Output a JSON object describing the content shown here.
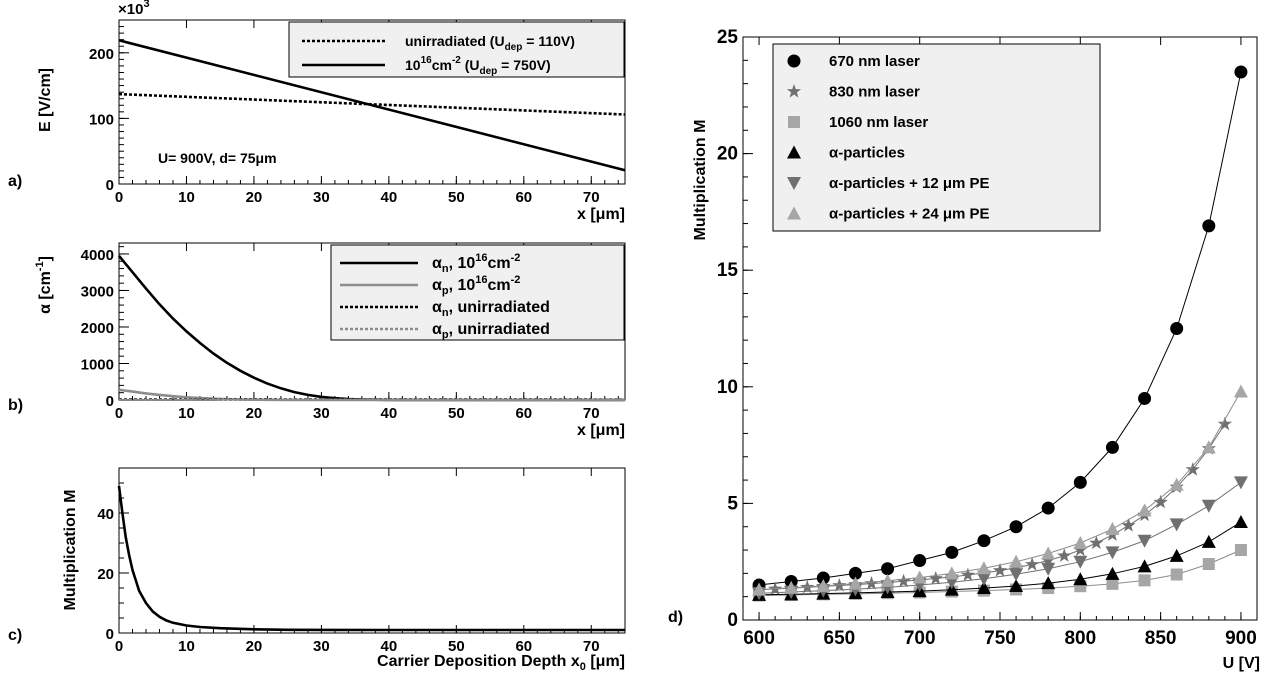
{
  "panels": {
    "a": {
      "tag": "a)",
      "chart_data": {
        "type": "line",
        "exponent_label": "×10",
        "exponent_sup": "3",
        "xlabel": "x [μm]",
        "ylabel": "E [V/cm]",
        "annotation": "U= 900V, d= 75μm",
        "xlim": [
          0,
          75
        ],
        "ylim": [
          0,
          250
        ],
        "xticks": [
          "0",
          "10",
          "20",
          "30",
          "40",
          "50",
          "60",
          "70"
        ],
        "yticks": [
          "0",
          "100",
          "200"
        ],
        "series": [
          {
            "name_main": "unirradiated (U",
            "name_sub": "dep",
            "name_tail": " = 110V)",
            "style": "dotted",
            "color": "#000000",
            "x": [
              0,
              75
            ],
            "y": [
              137,
              106
            ]
          },
          {
            "name_main": "10",
            "name_sup": "16",
            "name_mid": "cm",
            "name_sup2": "-2",
            "name_mid2": " (U",
            "name_sub": "dep",
            "name_tail": " = 750V)",
            "style": "solid",
            "color": "#000000",
            "x": [
              0,
              75
            ],
            "y": [
              219,
              21
            ]
          }
        ]
      }
    },
    "b": {
      "tag": "b)",
      "chart_data": {
        "type": "line",
        "xlabel": "x [μm]",
        "ylabel_main": "α [cm",
        "ylabel_sup": "-1",
        "ylabel_tail": "]",
        "xlim": [
          0,
          75
        ],
        "ylim": [
          0,
          4300
        ],
        "xticks": [
          "0",
          "10",
          "20",
          "30",
          "40",
          "50",
          "60",
          "70"
        ],
        "yticks": [
          "0",
          "1000",
          "2000",
          "3000",
          "4000"
        ],
        "series": [
          {
            "name_main": "α",
            "name_sub": "n",
            "name_mid": ", 10",
            "name_sup": "16",
            "name_tail": "cm",
            "name_sup2": "-2",
            "style": "solid",
            "color": "#000000",
            "x": [
              0,
              2,
              4,
              6,
              8,
              10,
              12,
              14,
              16,
              18,
              20,
              22,
              24,
              26,
              28,
              30,
              32,
              34,
              36,
              38,
              40,
              45,
              50,
              55,
              60,
              65,
              70,
              75
            ],
            "y": [
              3950,
              3500,
              3050,
              2620,
              2230,
              1880,
              1560,
              1270,
              1020,
              800,
              610,
              450,
              320,
              215,
              140,
              85,
              50,
              28,
              15,
              8,
              4,
              1,
              0,
              0,
              0,
              0,
              0,
              0
            ]
          },
          {
            "name_main": "α",
            "name_sub": "p",
            "name_mid": ", 10",
            "name_sup": "16",
            "name_tail": "cm",
            "name_sup2": "-2",
            "style": "solid",
            "color": "#8c8c8c",
            "x": [
              0,
              2,
              4,
              6,
              8,
              10,
              12,
              14,
              16,
              18,
              20,
              25,
              30,
              40,
              50,
              60,
              75
            ],
            "y": [
              280,
              230,
              180,
              140,
              105,
              75,
              52,
              35,
              22,
              13,
              8,
              2,
              0,
              0,
              0,
              0,
              0
            ]
          },
          {
            "name_main": "α",
            "name_sub": "n",
            "name_tail": ", unirradiated",
            "style": "dotted",
            "color": "#000000",
            "x": [
              0,
              75
            ],
            "y": [
              20,
              15
            ]
          },
          {
            "name_main": "α",
            "name_sub": "p",
            "name_tail": ", unirradiated",
            "style": "dotted",
            "color": "#8c8c8c",
            "x": [
              0,
              75
            ],
            "y": [
              8,
              5
            ]
          }
        ]
      }
    },
    "c": {
      "tag": "c)",
      "chart_data": {
        "type": "line",
        "xlabel_main": "Carrier Deposition Depth x",
        "xlabel_sub": "0",
        "xlabel_tail": " [μm]",
        "ylabel": "Multiplication M",
        "xlim": [
          0,
          75
        ],
        "ylim": [
          0,
          55
        ],
        "xticks": [
          "0",
          "10",
          "20",
          "30",
          "40",
          "50",
          "60",
          "70"
        ],
        "yticks": [
          "0",
          "20",
          "40"
        ],
        "series": [
          {
            "name": "",
            "style": "solid",
            "color": "#000000",
            "x": [
              0,
              0.5,
              1,
              1.5,
              2,
              3,
              4,
              5,
              6,
              7,
              8,
              10,
              12,
              15,
              20,
              25,
              30,
              40,
              50,
              60,
              75
            ],
            "y": [
              49,
              40,
              32,
              26,
              21,
              14,
              10,
              7.2,
              5.4,
              4.2,
              3.4,
              2.5,
              2.0,
              1.6,
              1.25,
              1.08,
              1.02,
              1,
              1,
              1,
              1
            ]
          }
        ]
      }
    },
    "d": {
      "tag": "d)",
      "chart_data": {
        "type": "scatter",
        "xlabel": "U [V]",
        "ylabel": "Multiplication M",
        "xlim": [
          590,
          910
        ],
        "ylim": [
          0,
          25
        ],
        "xticks": [
          "600",
          "650",
          "700",
          "750",
          "800",
          "850",
          "900"
        ],
        "yticks": [
          "0",
          "5",
          "10",
          "15",
          "20",
          "25"
        ],
        "series": [
          {
            "name": "670 nm laser",
            "marker": "circle",
            "color": "#000000",
            "x": [
              600,
              620,
              640,
              660,
              680,
              700,
              720,
              740,
              760,
              780,
              800,
              820,
              840,
              860,
              880,
              900
            ],
            "y": [
              1.5,
              1.65,
              1.8,
              2.0,
              2.2,
              2.55,
              2.9,
              3.4,
              4.0,
              4.8,
              5.9,
              7.4,
              9.5,
              12.5,
              16.9,
              23.5
            ]
          },
          {
            "name": "830 nm laser",
            "marker": "star",
            "color": "#707070",
            "x": [
              600,
              610,
              620,
              630,
              640,
              650,
              660,
              670,
              680,
              690,
              700,
              710,
              720,
              730,
              740,
              750,
              760,
              770,
              780,
              790,
              800,
              810,
              820,
              830,
              840,
              850,
              860,
              870,
              880,
              890
            ],
            "y": [
              1.3,
              1.33,
              1.37,
              1.4,
              1.44,
              1.48,
              1.52,
              1.56,
              1.61,
              1.66,
              1.72,
              1.78,
              1.85,
              1.93,
              2.02,
              2.12,
              2.24,
              2.38,
              2.55,
              2.75,
              3.0,
              3.3,
              3.65,
              4.05,
              4.5,
              5.05,
              5.7,
              6.45,
              7.35,
              8.4
            ]
          },
          {
            "name": "1060 nm laser",
            "marker": "square",
            "color": "#a6a6a6",
            "x": [
              600,
              620,
              640,
              660,
              680,
              700,
              720,
              740,
              760,
              780,
              800,
              820,
              840,
              860,
              880,
              900
            ],
            "y": [
              1.05,
              1.07,
              1.1,
              1.12,
              1.15,
              1.18,
              1.22,
              1.26,
              1.31,
              1.37,
              1.45,
              1.55,
              1.7,
              1.95,
              2.4,
              3.0
            ]
          },
          {
            "name": "α-particles",
            "marker": "triangle-up",
            "color": "#000000",
            "x": [
              600,
              620,
              640,
              660,
              680,
              700,
              720,
              740,
              760,
              780,
              800,
              820,
              840,
              860,
              880,
              900
            ],
            "y": [
              1.08,
              1.1,
              1.13,
              1.16,
              1.2,
              1.24,
              1.3,
              1.37,
              1.46,
              1.58,
              1.75,
              1.98,
              2.3,
              2.75,
              3.35,
              4.2
            ]
          },
          {
            "name": "α-particles + 12 μm PE",
            "marker": "triangle-down",
            "color": "#707070",
            "x": [
              600,
              620,
              640,
              660,
              680,
              700,
              720,
              740,
              760,
              780,
              800,
              820,
              840,
              860,
              880,
              900
            ],
            "y": [
              1.15,
              1.2,
              1.26,
              1.32,
              1.4,
              1.5,
              1.62,
              1.77,
              1.96,
              2.2,
              2.5,
              2.9,
              3.4,
              4.1,
              4.9,
              5.9
            ]
          },
          {
            "name": "α-particles + 24 μm PE",
            "marker": "triangle-up",
            "color": "#a6a6a6",
            "x": [
              600,
              620,
              640,
              660,
              680,
              700,
              720,
              740,
              760,
              780,
              800,
              820,
              840,
              860,
              880,
              900
            ],
            "y": [
              1.3,
              1.38,
              1.46,
              1.56,
              1.68,
              1.82,
              2.0,
              2.22,
              2.5,
              2.85,
              3.3,
              3.9,
              4.7,
              5.8,
              7.4,
              9.8
            ]
          }
        ]
      }
    }
  }
}
